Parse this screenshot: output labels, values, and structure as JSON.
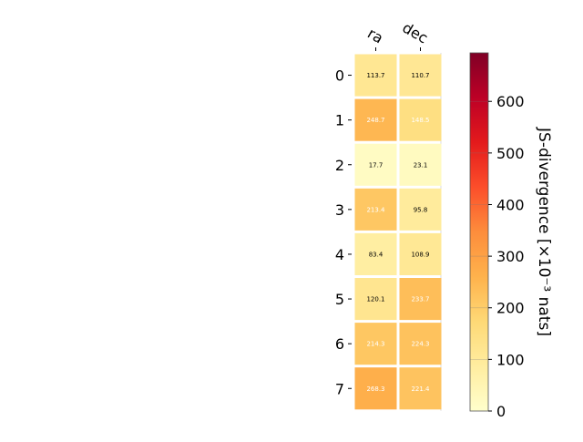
{
  "chart_data": {
    "type": "heatmap",
    "columns": [
      "ra",
      "dec"
    ],
    "rows": [
      "0",
      "1",
      "2",
      "3",
      "4",
      "5",
      "6",
      "7"
    ],
    "values": [
      [
        113.7,
        110.7
      ],
      [
        248.7,
        148.5
      ],
      [
        17.7,
        23.1
      ],
      [
        213.4,
        95.8
      ],
      [
        83.4,
        108.9
      ],
      [
        120.1,
        233.7
      ],
      [
        214.3,
        224.3
      ],
      [
        268.3,
        221.4
      ]
    ],
    "colorbar": {
      "label": "JS-divergence [×10⁻³ nats]",
      "range": [
        0,
        694
      ],
      "ticks": [
        0,
        100,
        200,
        300,
        400,
        500,
        600
      ],
      "colormap": "YlOrRd"
    },
    "grid": false
  }
}
